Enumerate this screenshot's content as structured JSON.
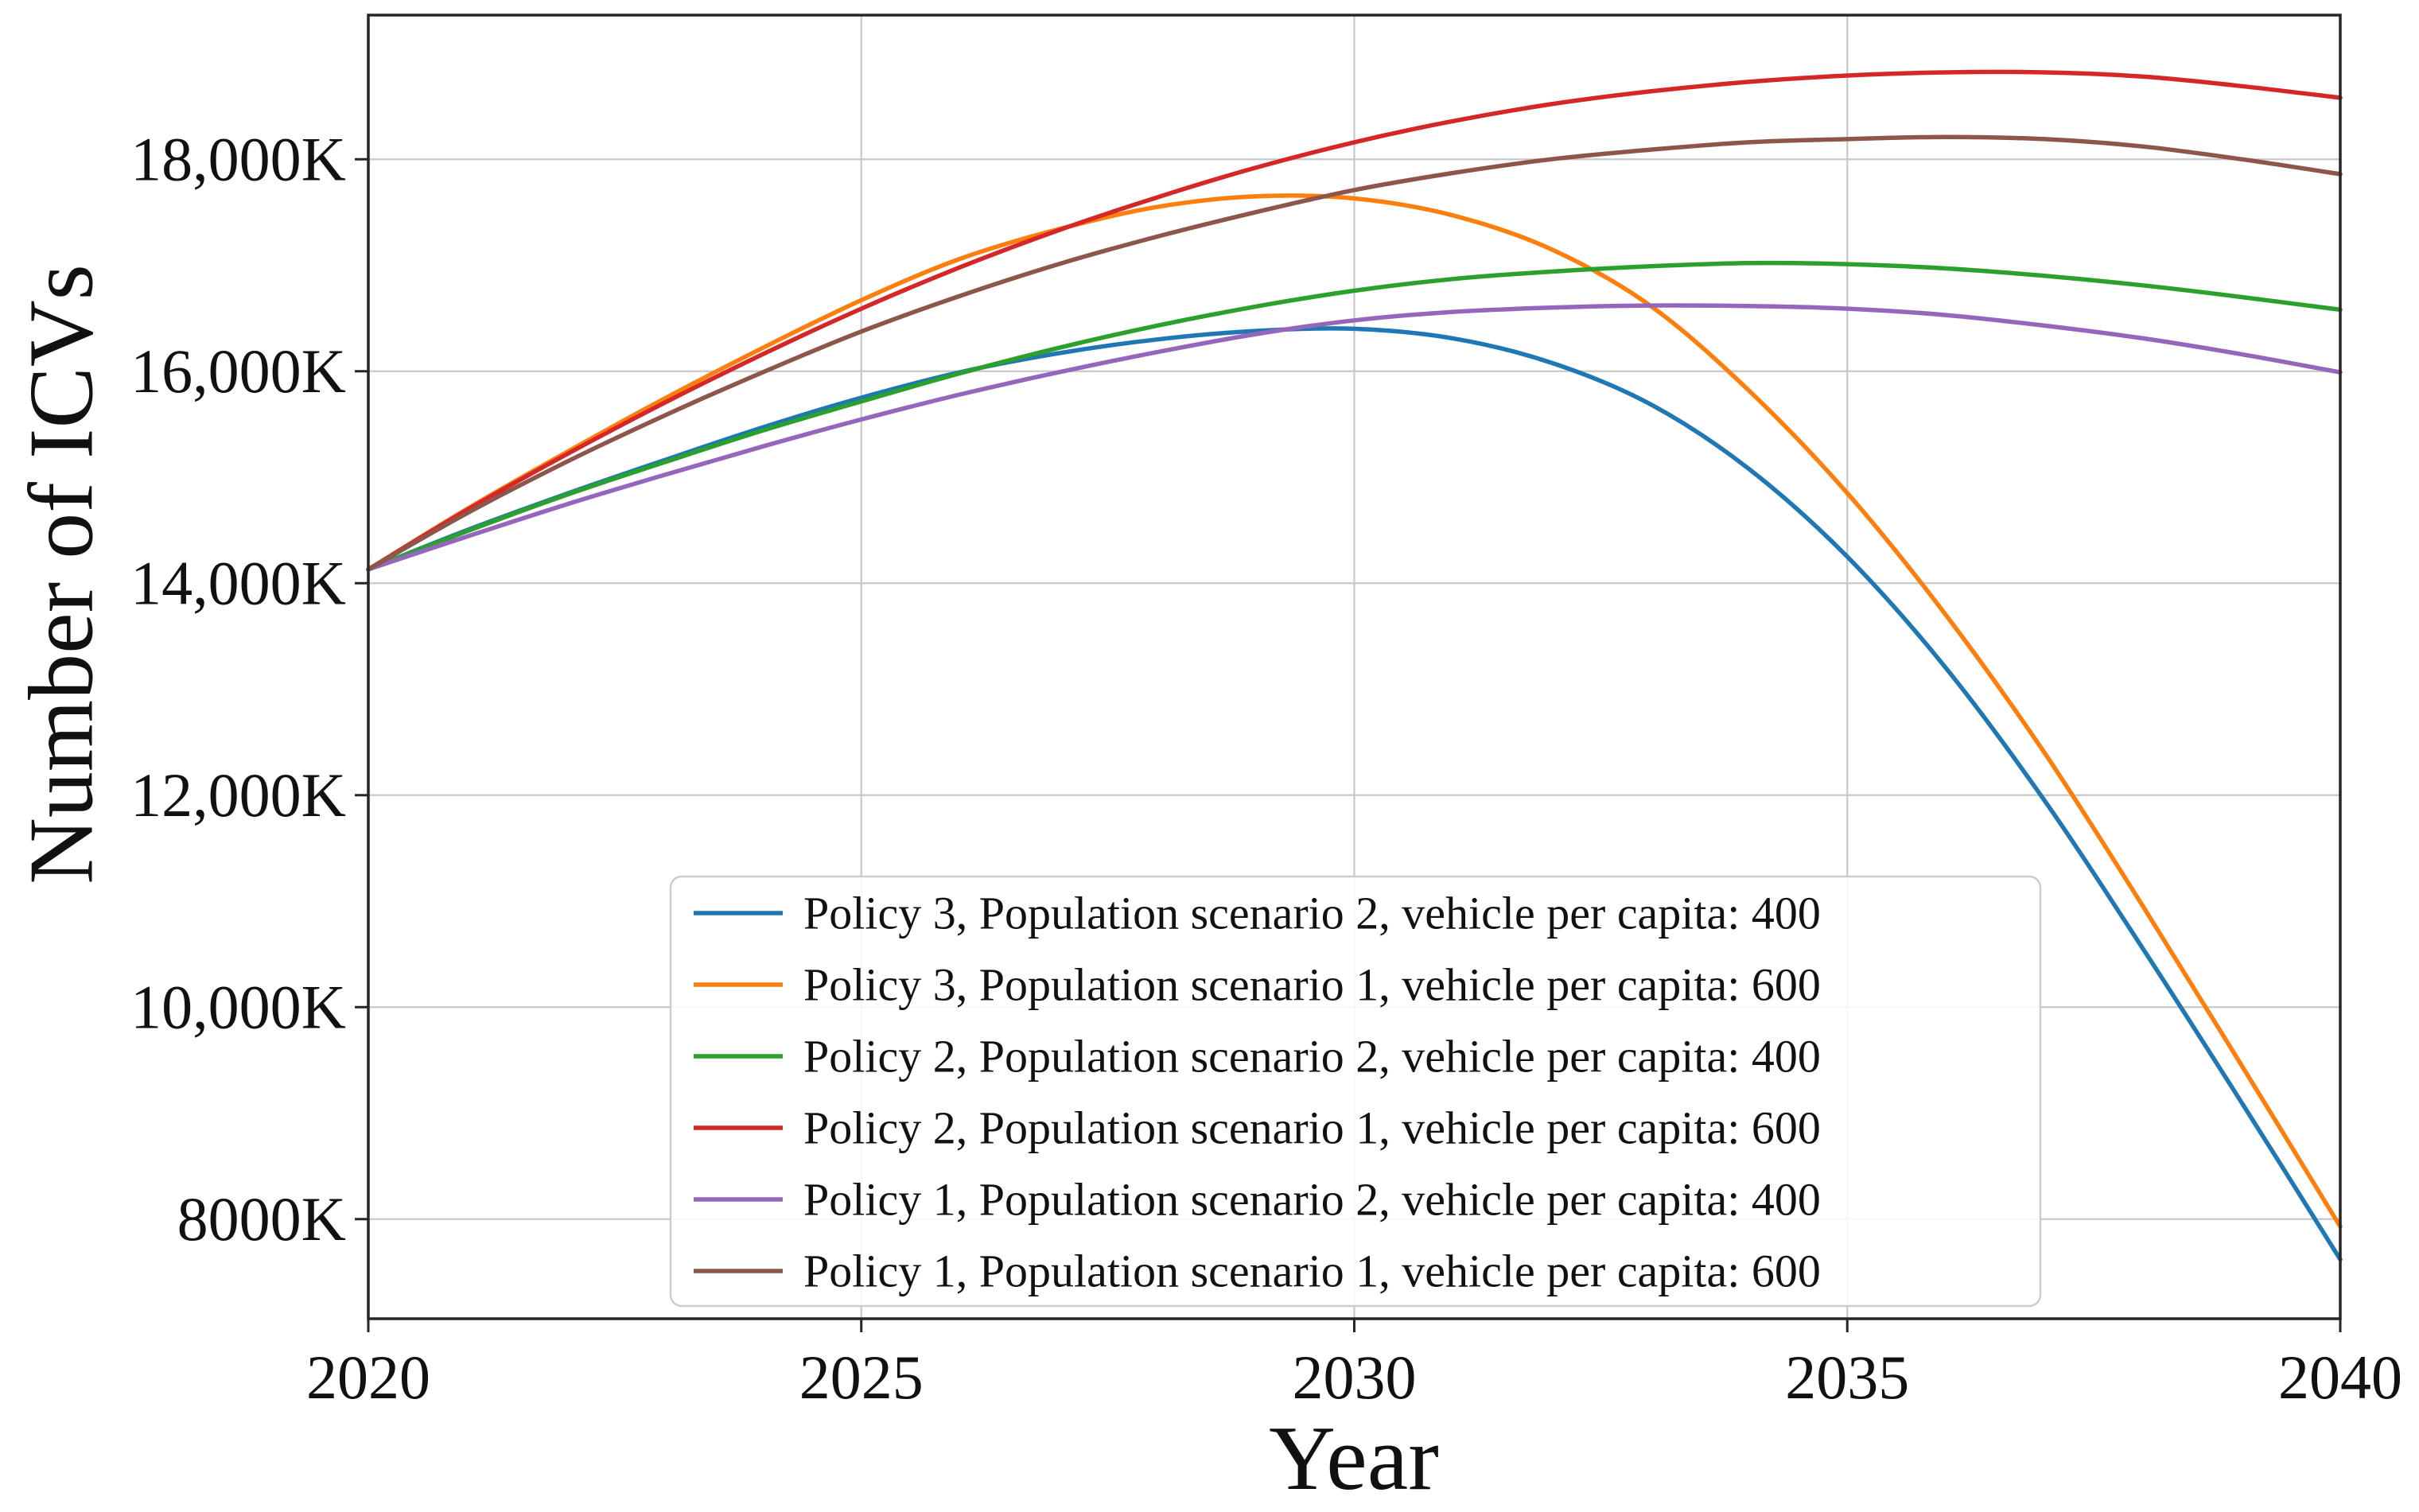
{
  "chart_data": {
    "type": "line",
    "title": "",
    "xlabel": "Year",
    "ylabel": "Number of ICVs",
    "grid": true,
    "legend_position": "lower center-left inside plot",
    "xlim": [
      2020,
      2040
    ],
    "ylim": [
      7060,
      19360
    ],
    "x_ticks": [
      {
        "value": 2020,
        "label": "2020"
      },
      {
        "value": 2025,
        "label": "2025"
      },
      {
        "value": 2030,
        "label": "2030"
      },
      {
        "value": 2035,
        "label": "2035"
      },
      {
        "value": 2040,
        "label": "2040"
      }
    ],
    "y_ticks": [
      {
        "value": 8000,
        "label": "8000K"
      },
      {
        "value": 10000,
        "label": "10,000K"
      },
      {
        "value": 12000,
        "label": "12,000K"
      },
      {
        "value": 14000,
        "label": "14,000K"
      },
      {
        "value": 16000,
        "label": "16,000K"
      },
      {
        "value": 18000,
        "label": "18,000K"
      }
    ],
    "x_unit": "year",
    "y_unit": "thousand vehicles (K)",
    "years": [
      2020,
      2021,
      2022,
      2023,
      2024,
      2025,
      2026,
      2027,
      2028,
      2029,
      2030,
      2031,
      2032,
      2033,
      2034,
      2035,
      2036,
      2037,
      2038,
      2039,
      2040
    ],
    "series": [
      {
        "name": "Policy 3, Population scenario 2, vehicle per capita: 400",
        "color": "#1f77b4",
        "values": [
          14130,
          14500,
          14840,
          15160,
          15470,
          15750,
          15990,
          16170,
          16300,
          16380,
          16400,
          16310,
          16080,
          15690,
          15080,
          14250,
          13200,
          11950,
          10550,
          9100,
          7620
        ]
      },
      {
        "name": "Policy 3, Population scenario 1, vehicle per capita: 600",
        "color": "#ff7f0e",
        "values": [
          14130,
          14700,
          15230,
          15740,
          16220,
          16670,
          17060,
          17340,
          17550,
          17650,
          17630,
          17470,
          17150,
          16620,
          15820,
          14850,
          13700,
          12400,
          10950,
          9450,
          7930
        ]
      },
      {
        "name": "Policy 2, Population scenario 2, vehicle per capita: 400",
        "color": "#2ca02c",
        "values": [
          14130,
          14490,
          14830,
          15140,
          15440,
          15715,
          15980,
          16220,
          16430,
          16610,
          16760,
          16870,
          16940,
          16990,
          17020,
          17010,
          16970,
          16900,
          16810,
          16700,
          16580
        ]
      },
      {
        "name": "Policy 2, Population scenario 1, vehicle per capita: 600",
        "color": "#d62728",
        "values": [
          14130,
          14690,
          15210,
          15700,
          16160,
          16590,
          16980,
          17330,
          17640,
          17920,
          18160,
          18360,
          18520,
          18640,
          18730,
          18790,
          18820,
          18820,
          18780,
          18690,
          18580
        ]
      },
      {
        "name": "Policy 1, Population scenario 2, vehicle per capita: 400",
        "color": "#9467bd",
        "values": [
          14130,
          14440,
          14740,
          15020,
          15290,
          15545,
          15780,
          15990,
          16180,
          16350,
          16480,
          16560,
          16600,
          16620,
          16615,
          16590,
          16530,
          16430,
          16310,
          16160,
          15990
        ]
      },
      {
        "name": "Policy 1, Population scenario 1, vehicle per capita: 600",
        "color": "#8c564b",
        "values": [
          14130,
          14660,
          15140,
          15580,
          15990,
          16375,
          16710,
          17010,
          17270,
          17500,
          17710,
          17870,
          18000,
          18090,
          18160,
          18190,
          18210,
          18190,
          18120,
          18000,
          17860
        ]
      }
    ]
  }
}
